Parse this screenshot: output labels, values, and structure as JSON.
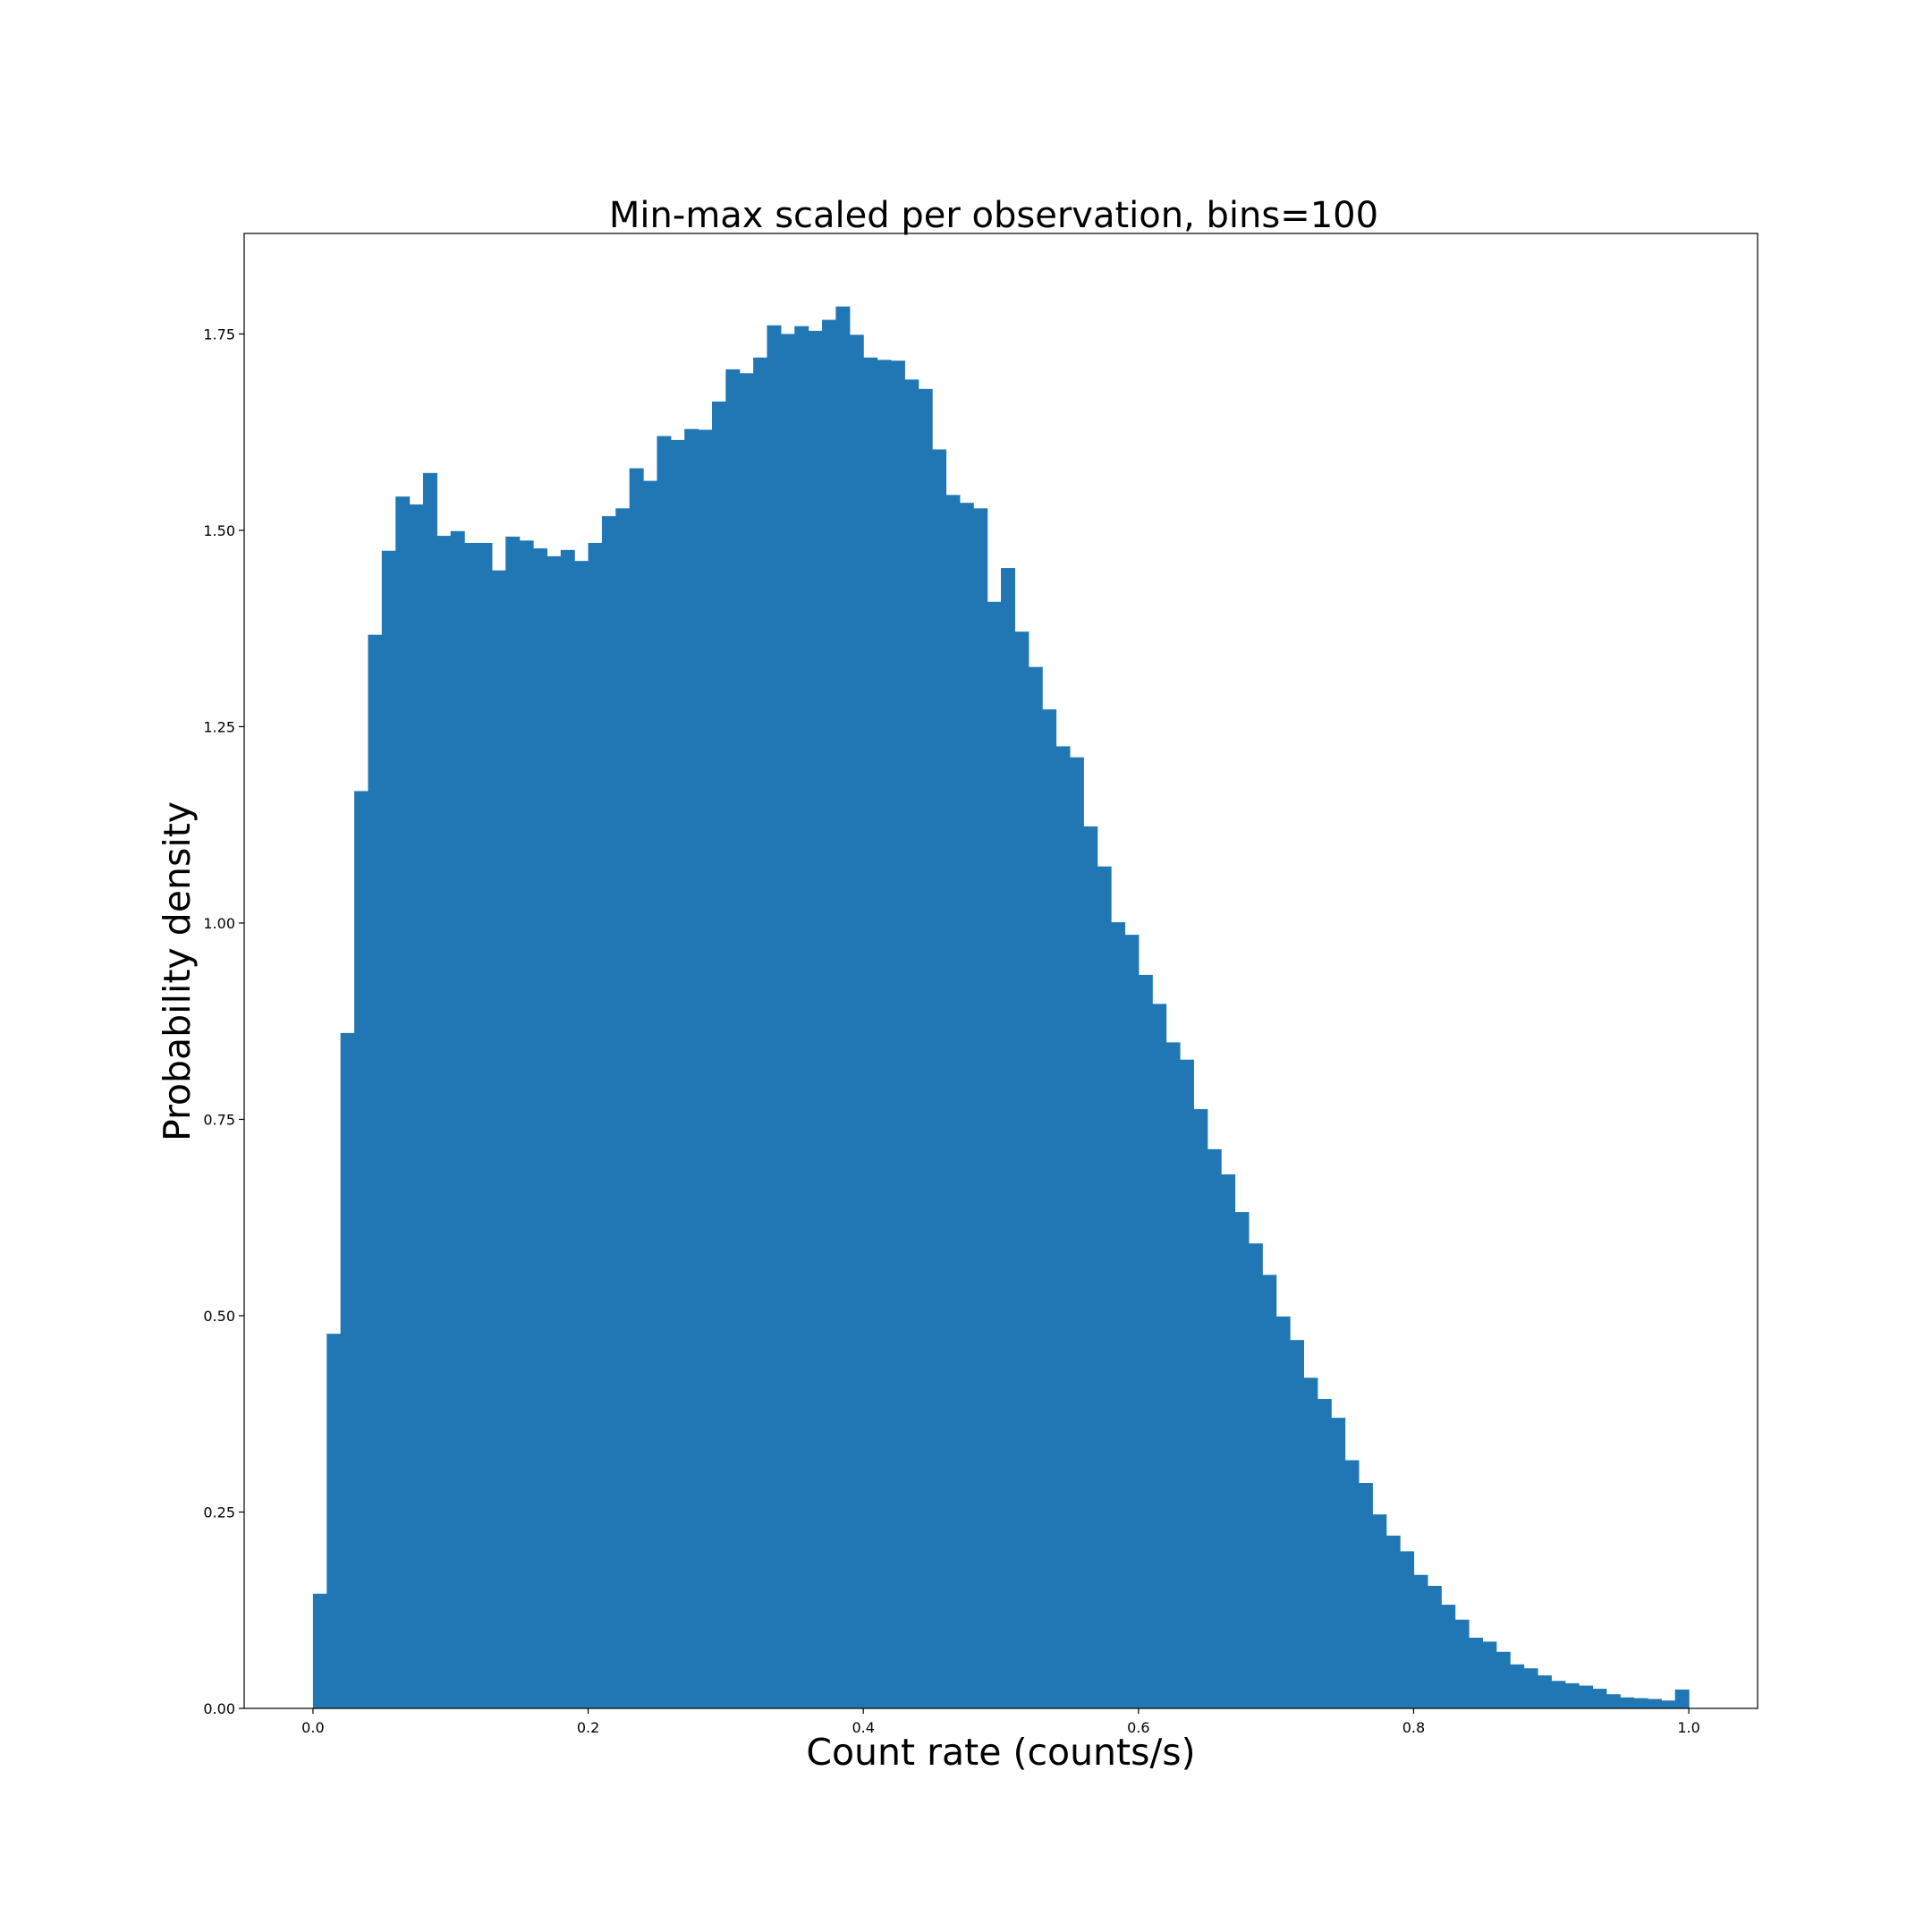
{
  "chart_data": {
    "type": "bar",
    "title": "Min-max scaled per observation, bins=100",
    "xlabel": "Count rate (counts/s)",
    "ylabel": "Probability density",
    "xlim": [
      -0.05,
      1.05
    ],
    "ylim": [
      0,
      1.878
    ],
    "grid": false,
    "bar_color": "#2077b4",
    "bin_edges_start": 0.0,
    "bin_width": 0.01,
    "x_ticks": [
      0.0,
      0.2,
      0.4,
      0.6,
      0.8,
      1.0
    ],
    "x_tick_labels": [
      "0.0",
      "0.2",
      "0.4",
      "0.6",
      "0.8",
      "1.0"
    ],
    "y_ticks": [
      0.0,
      0.25,
      0.5,
      0.75,
      1.0,
      1.25,
      1.5,
      1.75
    ],
    "y_tick_labels": [
      "0.00",
      "0.25",
      "0.50",
      "0.75",
      "1.00",
      "1.25",
      "1.50",
      "1.75"
    ],
    "values": [
      0.146,
      0.477,
      0.86,
      1.168,
      1.367,
      1.474,
      1.543,
      1.533,
      1.573,
      1.493,
      1.499,
      1.484,
      1.484,
      1.449,
      1.492,
      1.487,
      1.477,
      1.467,
      1.475,
      1.461,
      1.484,
      1.518,
      1.528,
      1.579,
      1.563,
      1.62,
      1.615,
      1.629,
      1.628,
      1.664,
      1.705,
      1.7,
      1.72,
      1.761,
      1.75,
      1.76,
      1.754,
      1.768,
      1.785,
      1.749,
      1.72,
      1.717,
      1.716,
      1.692,
      1.68,
      1.603,
      1.545,
      1.535,
      1.528,
      1.409,
      1.452,
      1.371,
      1.326,
      1.272,
      1.225,
      1.211,
      1.123,
      1.072,
      1.001,
      0.985,
      0.934,
      0.897,
      0.848,
      0.826,
      0.763,
      0.712,
      0.68,
      0.632,
      0.592,
      0.552,
      0.499,
      0.469,
      0.421,
      0.394,
      0.37,
      0.316,
      0.287,
      0.247,
      0.22,
      0.2,
      0.17,
      0.156,
      0.132,
      0.113,
      0.09,
      0.085,
      0.072,
      0.056,
      0.051,
      0.042,
      0.035,
      0.032,
      0.029,
      0.025,
      0.018,
      0.014,
      0.013,
      0.012,
      0.01,
      0.024
    ]
  }
}
